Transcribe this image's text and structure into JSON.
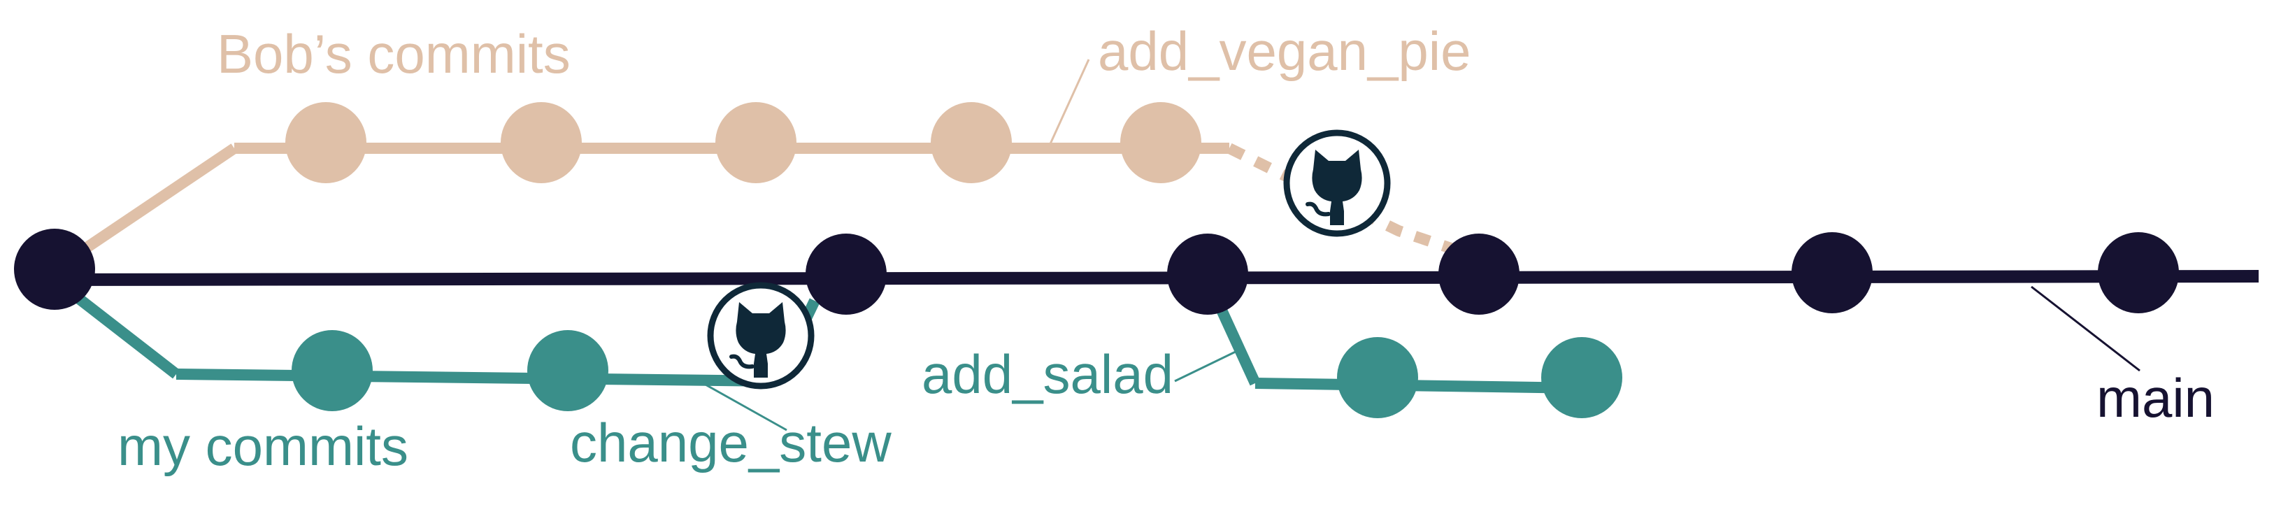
{
  "colors": {
    "main": "#161231",
    "bob": "#dfc0a8",
    "mine": "#3a8f8a",
    "octocat": "#0f2838",
    "background": "#ffffff"
  },
  "labels": {
    "bob_commits": "Bob’s commits",
    "add_vegan_pie": "add_vegan_pie",
    "add_salad": "add_salad",
    "my_commits": "my commits",
    "change_stew": "change_stew",
    "main": "main"
  },
  "icons": {
    "merge_badge": "github-octocat-icon"
  },
  "branches": [
    {
      "id": "bob",
      "name": "Bob’s commits",
      "commits": 5
    },
    {
      "id": "mine",
      "name": "my commits",
      "commits": 2
    },
    {
      "id": "add_salad",
      "name": "add_salad",
      "commits": 2
    },
    {
      "id": "main",
      "name": "main",
      "commits": 6
    }
  ]
}
